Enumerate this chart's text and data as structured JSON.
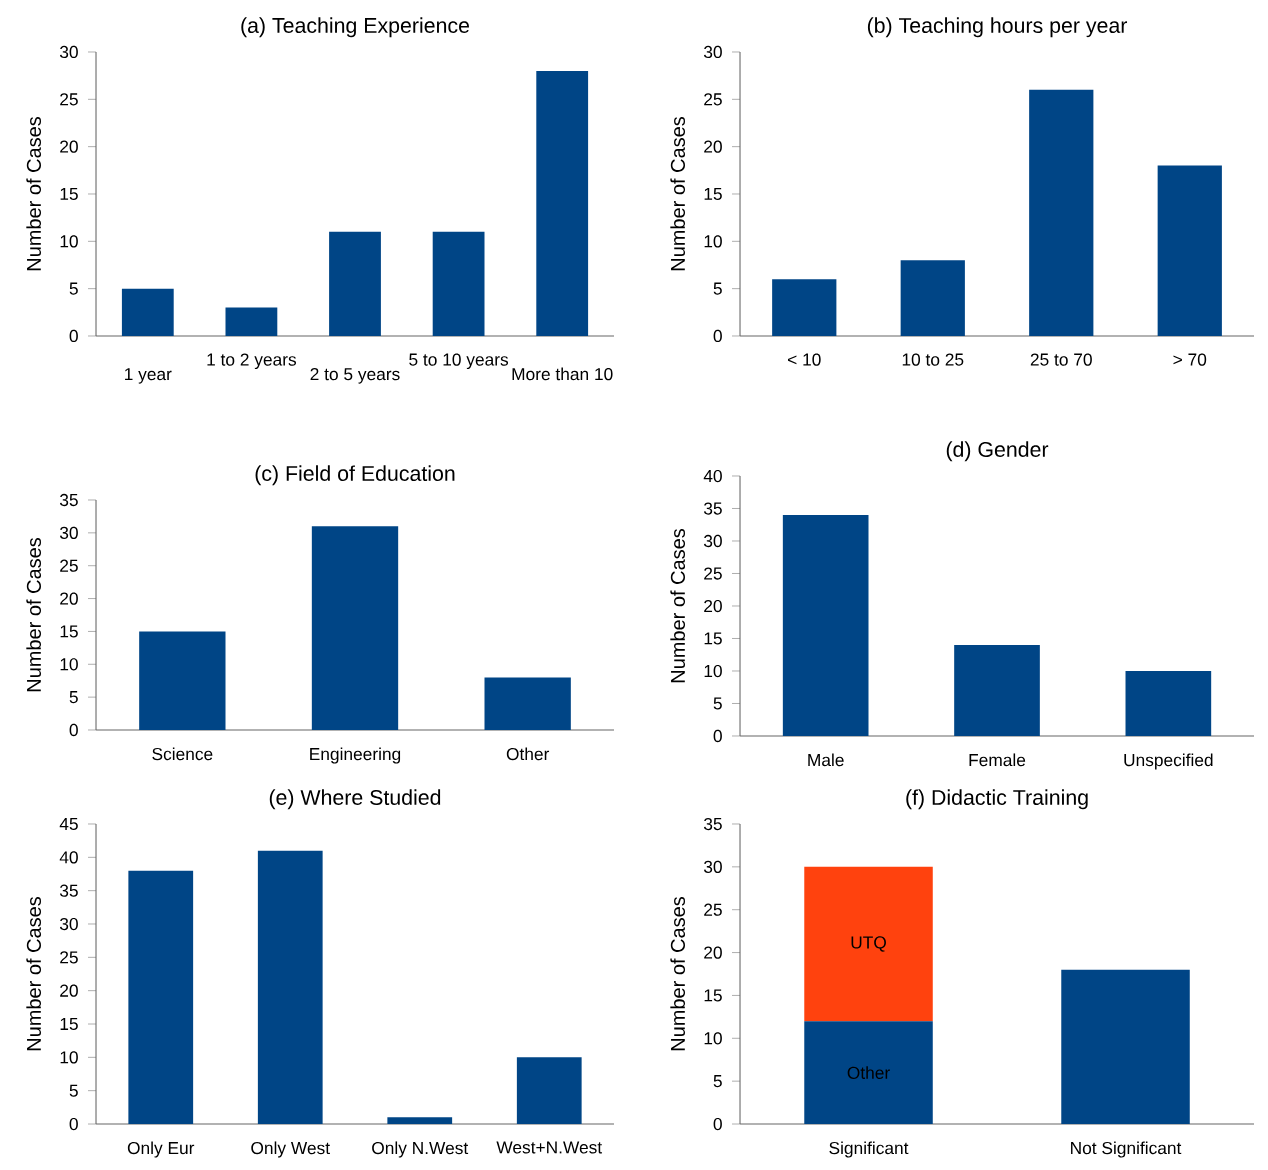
{
  "chart_data": [
    {
      "type": "bar",
      "title": "(a)  Teaching Experience",
      "ylabel": "Number of Cases",
      "categories": [
        "1 year",
        "1 to 2 years",
        "2 to 5 years",
        "5 to 10 years",
        "More than 10"
      ],
      "series": [
        {
          "color": "#004586",
          "values": [
            5,
            3,
            11,
            11,
            28
          ]
        }
      ],
      "ylim": [
        0,
        30
      ],
      "yticks": [
        0,
        5,
        10,
        15,
        20,
        25,
        30
      ],
      "grid": false,
      "legend": false
    },
    {
      "type": "bar",
      "title": "(b)  Teaching hours per year",
      "ylabel": "Number of Cases",
      "categories": [
        "< 10",
        "10 to 25",
        "25 to 70",
        "> 70"
      ],
      "series": [
        {
          "color": "#004586",
          "values": [
            6,
            8,
            26,
            18
          ]
        }
      ],
      "ylim": [
        0,
        30
      ],
      "yticks": [
        0,
        5,
        10,
        15,
        20,
        25,
        30
      ],
      "grid": false,
      "legend": false
    },
    {
      "type": "bar",
      "title": "(c)  Field of Education",
      "ylabel": "Number of Cases",
      "categories": [
        "Science",
        "Engineering",
        "Other"
      ],
      "series": [
        {
          "color": "#004586",
          "values": [
            15,
            31,
            8
          ]
        }
      ],
      "ylim": [
        0,
        35
      ],
      "yticks": [
        0,
        5,
        10,
        15,
        20,
        25,
        30,
        35
      ],
      "grid": false,
      "legend": false
    },
    {
      "type": "bar",
      "title": "(d)  Gender",
      "ylabel": "Number of Cases",
      "categories": [
        "Male",
        "Female",
        "Unspecified"
      ],
      "series": [
        {
          "color": "#004586",
          "values": [
            34,
            14,
            10
          ]
        }
      ],
      "ylim": [
        0,
        40
      ],
      "yticks": [
        0,
        5,
        10,
        15,
        20,
        25,
        30,
        35,
        40
      ],
      "grid": false,
      "legend": false
    },
    {
      "type": "bar",
      "title": "(e)  Where Studied",
      "ylabel": "Number of Cases",
      "categories": [
        "Only Eur",
        "Only West",
        "Only N.West",
        "West+N.West"
      ],
      "series": [
        {
          "color": "#004586",
          "values": [
            38,
            41,
            1,
            10
          ]
        }
      ],
      "ylim": [
        0,
        45
      ],
      "yticks": [
        0,
        5,
        10,
        15,
        20,
        25,
        30,
        35,
        40,
        45
      ],
      "grid": false,
      "legend": false
    },
    {
      "type": "bar",
      "title": "(f)  Didactic Training",
      "ylabel": "Number of Cases",
      "categories": [
        "Significant",
        "Not Significant"
      ],
      "stacked": true,
      "series": [
        {
          "name": "Other",
          "color": "#004586",
          "values": [
            12,
            18
          ]
        },
        {
          "name": "UTQ",
          "color": "#ff420e",
          "values": [
            18,
            null
          ]
        }
      ],
      "ylim": [
        0,
        35
      ],
      "yticks": [
        0,
        5,
        10,
        15,
        20,
        25,
        30,
        35
      ],
      "grid": false,
      "legend": false
    }
  ]
}
